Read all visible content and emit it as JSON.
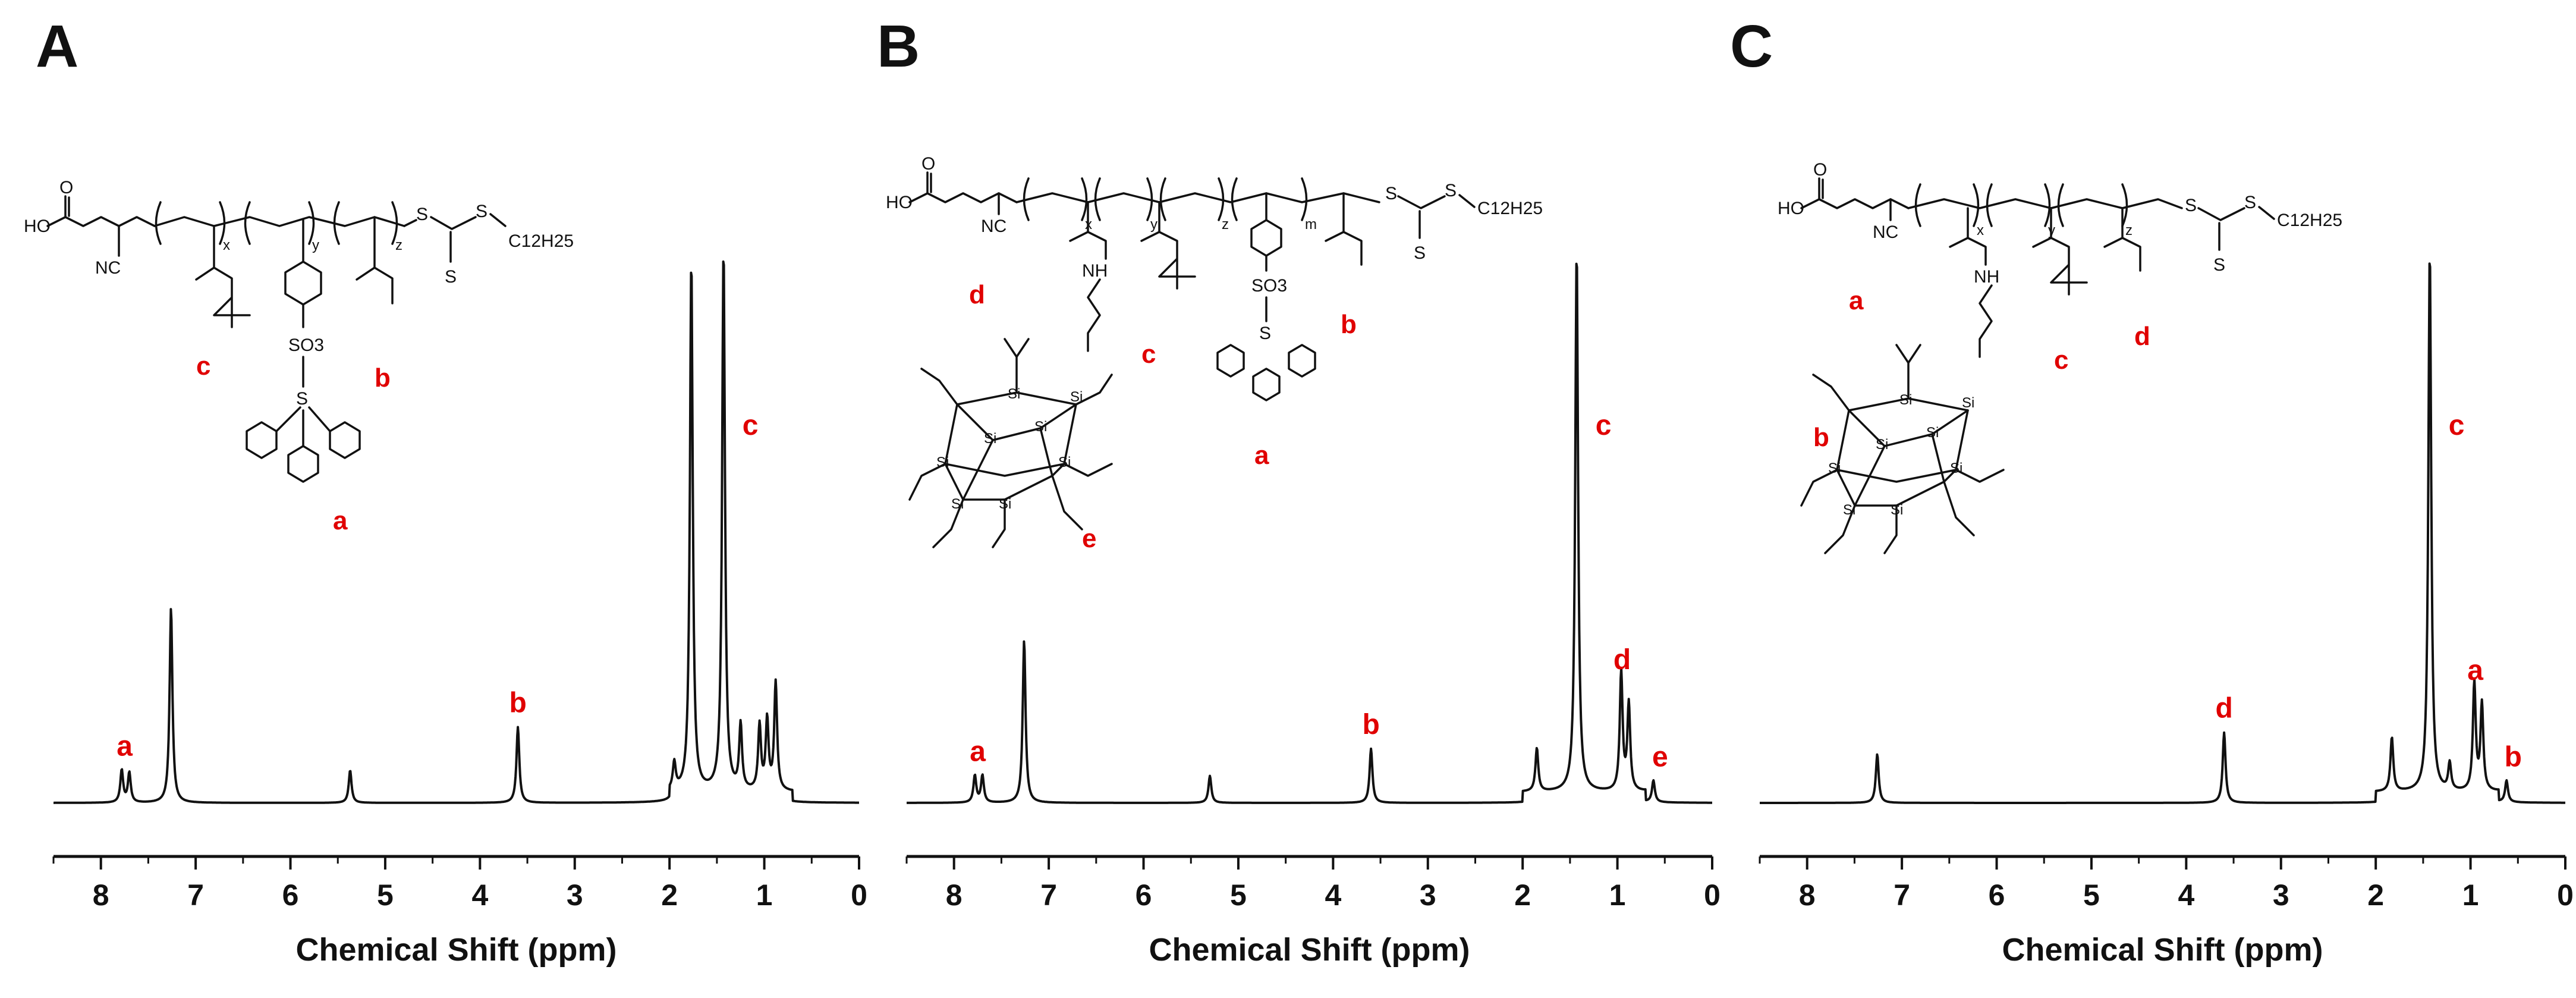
{
  "colors": {
    "axis": "#111111",
    "peak_label": "#e00000",
    "spectrum": "#111111",
    "background": "#ffffff"
  },
  "chart_data": [
    {
      "type": "line",
      "panel": "A",
      "xlabel": "Chemical Shift (ppm)",
      "ylabel": "",
      "xlim": [
        8.5,
        0
      ],
      "x_reversed": true,
      "x_ticks": [
        8,
        7,
        6,
        5,
        4,
        3,
        2,
        1,
        0
      ],
      "grid": false,
      "peaks": [
        {
          "x": 7.78,
          "y": 0.06
        },
        {
          "x": 7.7,
          "y": 0.055
        },
        {
          "x": 7.26,
          "y": 0.36
        },
        {
          "x": 5.37,
          "y": 0.06
        },
        {
          "x": 3.6,
          "y": 0.14
        },
        {
          "x": 1.95,
          "y": 0.05
        },
        {
          "x": 1.77,
          "y": 0.98
        },
        {
          "x": 1.43,
          "y": 1.0
        },
        {
          "x": 1.25,
          "y": 0.12
        },
        {
          "x": 1.05,
          "y": 0.12
        },
        {
          "x": 0.97,
          "y": 0.13
        },
        {
          "x": 0.88,
          "y": 0.2
        }
      ],
      "annotations": [
        {
          "text": "a",
          "x": 7.75
        },
        {
          "text": "b",
          "x": 3.6
        },
        {
          "text": "c",
          "x": 1.43
        }
      ],
      "structure_labels": [
        "c",
        "b",
        "a"
      ],
      "structure_text": {
        "ho": "HO",
        "nc": "NC",
        "so3": "SO3",
        "s_plus": "S",
        "s1": "S",
        "s2": "S",
        "s3": "S",
        "c12": "C12H25",
        "x": "x",
        "y": "y",
        "z": "z",
        "o": "O"
      }
    },
    {
      "type": "line",
      "panel": "B",
      "xlabel": "Chemical Shift (ppm)",
      "ylabel": "",
      "xlim": [
        8.5,
        0
      ],
      "x_reversed": true,
      "x_ticks": [
        8,
        7,
        6,
        5,
        4,
        3,
        2,
        1,
        0
      ],
      "grid": false,
      "peaks": [
        {
          "x": 7.78,
          "y": 0.05
        },
        {
          "x": 7.7,
          "y": 0.05
        },
        {
          "x": 7.26,
          "y": 0.3
        },
        {
          "x": 5.3,
          "y": 0.05
        },
        {
          "x": 3.6,
          "y": 0.1
        },
        {
          "x": 1.85,
          "y": 0.08
        },
        {
          "x": 1.43,
          "y": 1.0
        },
        {
          "x": 0.96,
          "y": 0.22
        },
        {
          "x": 0.88,
          "y": 0.16
        },
        {
          "x": 0.62,
          "y": 0.04
        }
      ],
      "annotations": [
        {
          "text": "a",
          "x": 7.75
        },
        {
          "text": "b",
          "x": 3.6
        },
        {
          "text": "c",
          "x": 1.43
        },
        {
          "text": "d",
          "x": 0.95
        },
        {
          "text": "e",
          "x": 0.55
        }
      ],
      "structure_labels": [
        "d",
        "c",
        "b",
        "a",
        "e"
      ],
      "structure_text": {
        "ho": "HO",
        "nc": "NC",
        "nh": "NH",
        "so3": "SO3",
        "s_plus": "S",
        "s1": "S",
        "s2": "S",
        "s3": "S",
        "c12": "C12H25",
        "x": "x",
        "y": "y",
        "z": "z",
        "m": "m",
        "o": "O",
        "si": "Si"
      }
    },
    {
      "type": "line",
      "panel": "C",
      "xlabel": "Chemical Shift (ppm)",
      "ylabel": "",
      "xlim": [
        8.5,
        0
      ],
      "x_reversed": true,
      "x_ticks": [
        8,
        7,
        6,
        5,
        4,
        3,
        2,
        1,
        0
      ],
      "grid": false,
      "peaks": [
        {
          "x": 7.26,
          "y": 0.09
        },
        {
          "x": 3.6,
          "y": 0.13
        },
        {
          "x": 1.83,
          "y": 0.1
        },
        {
          "x": 1.43,
          "y": 1.0
        },
        {
          "x": 1.22,
          "y": 0.05
        },
        {
          "x": 0.96,
          "y": 0.2
        },
        {
          "x": 0.88,
          "y": 0.16
        },
        {
          "x": 0.62,
          "y": 0.04
        }
      ],
      "annotations": [
        {
          "text": "a",
          "x": 0.95
        },
        {
          "text": "b",
          "x": 0.55
        },
        {
          "text": "c",
          "x": 1.43
        },
        {
          "text": "d",
          "x": 3.6
        }
      ],
      "structure_labels": [
        "a",
        "b",
        "c",
        "d"
      ],
      "structure_text": {
        "ho": "HO",
        "nc": "NC",
        "nh": "NH",
        "s1": "S",
        "s2": "S",
        "s3": "S",
        "c12": "C12H25",
        "x": "x",
        "y": "y",
        "z": "z",
        "o": "O",
        "si": "Si"
      }
    }
  ]
}
